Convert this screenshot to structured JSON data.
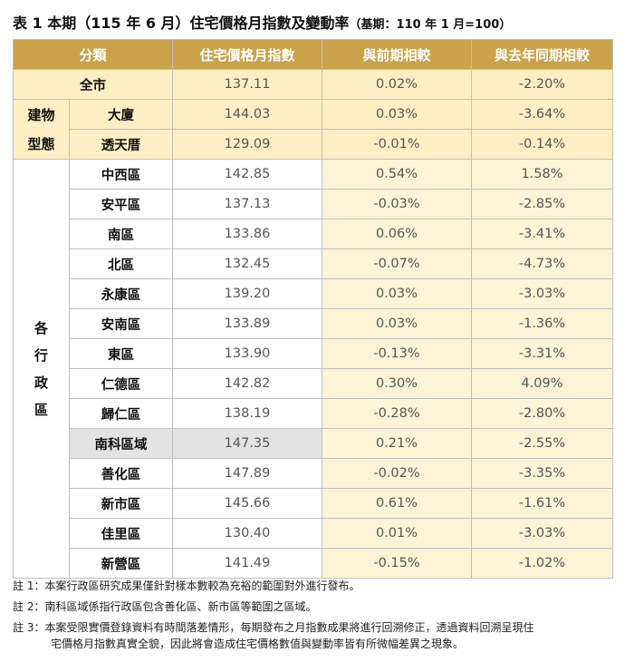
{
  "title": {
    "main": "表 1 本期（115 年 6 月）住宅價格月指數及變動率",
    "base": "（基期：110 年 1 月=100）"
  },
  "table": {
    "headers": [
      "分類",
      "住宅價格月指數",
      "與前期相較",
      "與去年同期相較"
    ],
    "city_total": {
      "label": "全市",
      "index": "137.11",
      "prev": "0.02%",
      "yoy": "-2.20%"
    },
    "building_group": {
      "label_line1": "建物",
      "label_line2": "型態"
    },
    "building_rows": [
      {
        "label": "大廈",
        "index": "144.03",
        "prev": "0.03%",
        "yoy": "-3.64%"
      },
      {
        "label": "透天厝",
        "index": "129.09",
        "prev": "-0.01%",
        "yoy": "-0.14%"
      }
    ],
    "district_group": {
      "chars": [
        "各",
        "行",
        "政",
        "區"
      ]
    },
    "district_rows": [
      {
        "label": "中西區",
        "index": "142.85",
        "prev": "0.54%",
        "yoy": "1.58%",
        "shaded": false
      },
      {
        "label": "安平區",
        "index": "137.13",
        "prev": "-0.03%",
        "yoy": "-2.85%",
        "shaded": false
      },
      {
        "label": "南區",
        "index": "133.86",
        "prev": "0.06%",
        "yoy": "-3.41%",
        "shaded": false
      },
      {
        "label": "北區",
        "index": "132.45",
        "prev": "-0.07%",
        "yoy": "-4.73%",
        "shaded": false
      },
      {
        "label": "永康區",
        "index": "139.20",
        "prev": "0.03%",
        "yoy": "-3.03%",
        "shaded": false
      },
      {
        "label": "安南區",
        "index": "133.89",
        "prev": "0.03%",
        "yoy": "-1.36%",
        "shaded": false
      },
      {
        "label": "東區",
        "index": "133.90",
        "prev": "-0.13%",
        "yoy": "-3.31%",
        "shaded": false
      },
      {
        "label": "仁德區",
        "index": "142.82",
        "prev": "0.30%",
        "yoy": "4.09%",
        "shaded": false
      },
      {
        "label": "歸仁區",
        "index": "138.19",
        "prev": "-0.28%",
        "yoy": "-2.80%",
        "shaded": false
      },
      {
        "label": "南科區域",
        "index": "147.35",
        "prev": "0.21%",
        "yoy": "-2.55%",
        "shaded": true
      },
      {
        "label": "善化區",
        "index": "147.89",
        "prev": "-0.02%",
        "yoy": "-3.35%",
        "shaded": false
      },
      {
        "label": "新市區",
        "index": "145.66",
        "prev": "0.61%",
        "yoy": "-1.61%",
        "shaded": false
      },
      {
        "label": "佳里區",
        "index": "130.40",
        "prev": "0.01%",
        "yoy": "-3.03%",
        "shaded": false
      },
      {
        "label": "新營區",
        "index": "141.49",
        "prev": "-0.15%",
        "yoy": "-1.02%",
        "shaded": false
      }
    ]
  },
  "notes": {
    "n1": "註 1：本案行政區研究成果僅針對樣本數較為充裕的範圍對外進行發布。",
    "n2": "註 2：南科區域係指行政區包含善化區、新市區等範圍之區域。",
    "n3_line1": "註 3：本案受限實價登錄資料有時間落差情形，每期發布之月指數成果將進行回溯修正，透過資料回溯呈現住",
    "n3_line2": "宅價格月指數真實全貌，因此將會造成住宅價格數值與變動率皆有所微幅差異之現象。"
  },
  "colors": {
    "header_bg": "#c9a24a",
    "highlight_bg": "#fdeec4",
    "compare_bg": "#fdf3d6",
    "shaded_row_bg": "#e3e3e3"
  }
}
